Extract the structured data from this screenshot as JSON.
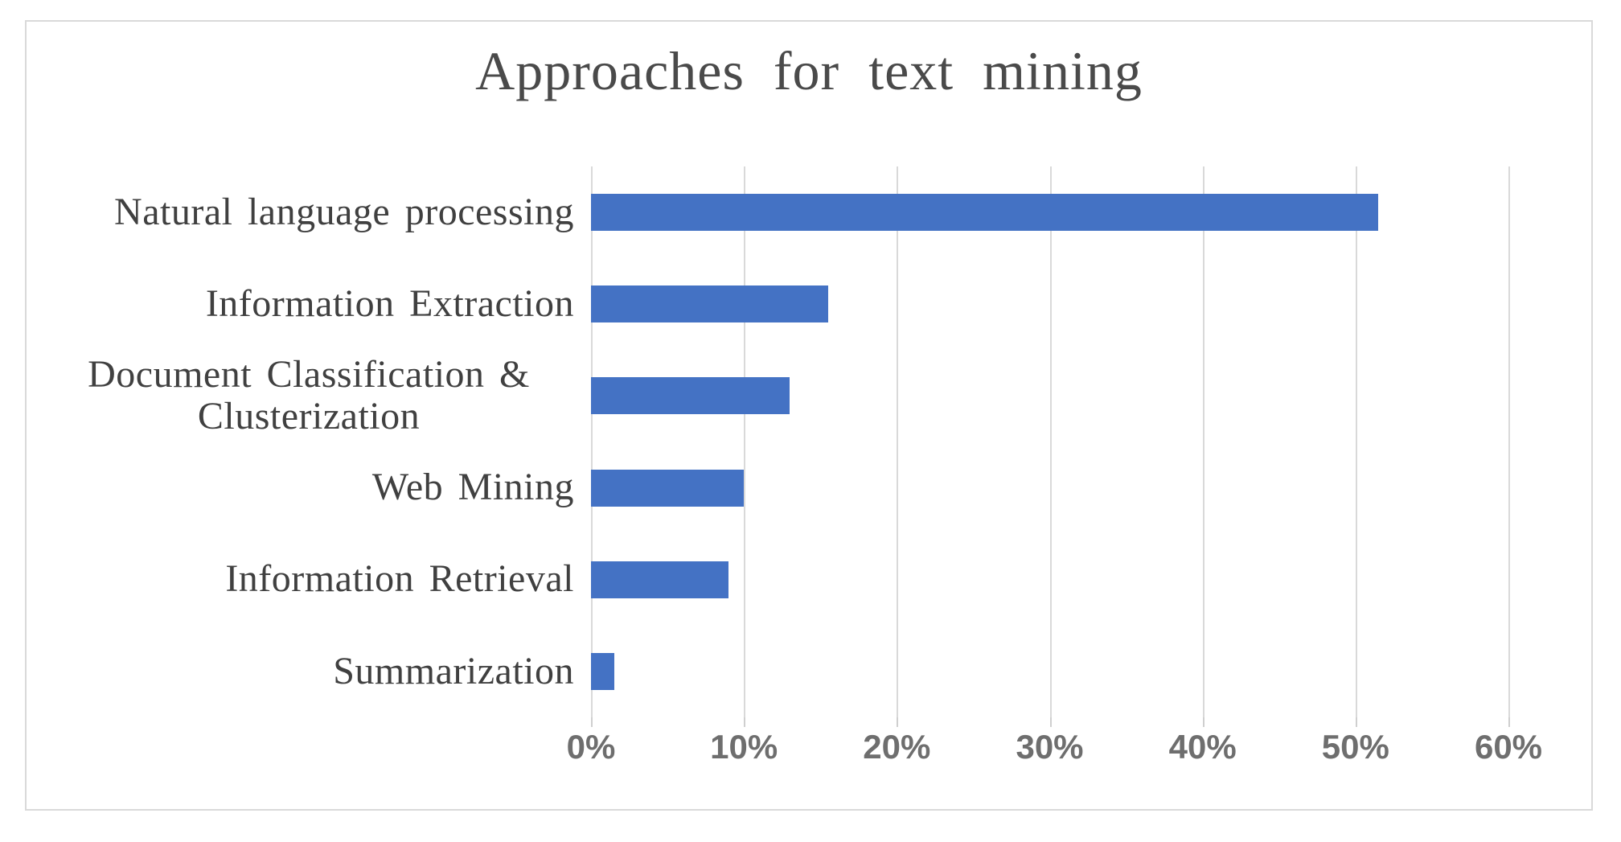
{
  "chart_data": {
    "type": "bar",
    "orientation": "horizontal",
    "title": "Approaches for text mining",
    "categories": [
      "Natural language processing",
      "Information Extraction",
      "Document Classification & Clusterization",
      "Web Mining",
      "Information Retrieval",
      "Summarization"
    ],
    "values": [
      51.5,
      15.5,
      13,
      10,
      9,
      1.5
    ],
    "value_unit": "percent",
    "xlabel": "",
    "ylabel": "",
    "x_axis": {
      "min": 0,
      "max": 60,
      "step": 10,
      "ticks": [
        "0%",
        "10%",
        "20%",
        "30%",
        "40%",
        "50%",
        "60%"
      ]
    },
    "grid": "vertical-gridlines",
    "legend": "none",
    "colors": {
      "bar": "#4472C4",
      "gridline": "#D9D9D9",
      "axis_tick_text": "#6E6E6E",
      "category_text": "#404040",
      "title_text": "#4A4A4A",
      "frame_border": "#D9D9D9",
      "background": "#FFFFFF"
    }
  }
}
